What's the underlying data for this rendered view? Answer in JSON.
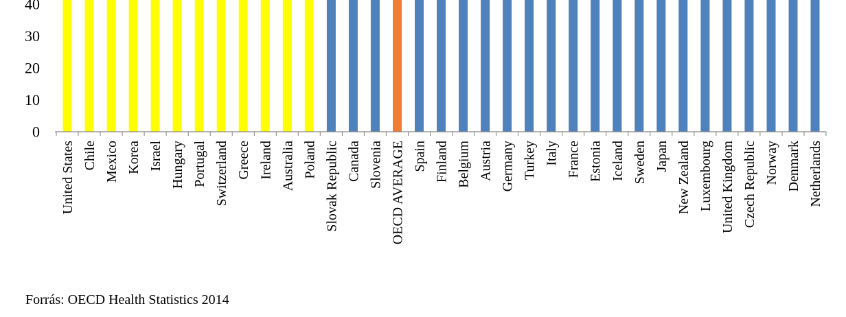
{
  "chart_data": {
    "type": "bar",
    "categories": [
      "United States",
      "Chile",
      "Mexico",
      "Korea",
      "Israel",
      "Hungary",
      "Portugal",
      "Switzerland",
      "Greece",
      "Ireland",
      "Australia",
      "Poland",
      "Slovak Republic",
      "Canada",
      "Slovenia",
      "OECD AVERAGE",
      "Spain",
      "Finland",
      "Belgium",
      "Austria",
      "Germany",
      "Turkey",
      "Italy",
      "France",
      "Estonia",
      "Iceland",
      "Sweden",
      "Japan",
      "New Zealand",
      "Luxembourg",
      "United Kingdom",
      "Czech Republic",
      "Norway",
      "Denmark",
      "Netherlands"
    ],
    "values": [
      45,
      45,
      45,
      45,
      45,
      45,
      45,
      45,
      45,
      45,
      45,
      45,
      45,
      45,
      45,
      45,
      45,
      45,
      45,
      45,
      45,
      45,
      45,
      45,
      45,
      45,
      45,
      45,
      45,
      45,
      45,
      45,
      45,
      45,
      45
    ],
    "bar_groups": [
      "yellow",
      "yellow",
      "yellow",
      "yellow",
      "yellow",
      "yellow",
      "yellow",
      "yellow",
      "yellow",
      "yellow",
      "yellow",
      "yellow",
      "blue",
      "blue",
      "blue",
      "orange",
      "blue",
      "blue",
      "blue",
      "blue",
      "blue",
      "blue",
      "blue",
      "blue",
      "blue",
      "blue",
      "blue",
      "blue",
      "blue",
      "blue",
      "blue",
      "blue",
      "blue",
      "blue",
      "blue"
    ],
    "colors": {
      "yellow": "#ffff00",
      "blue": "#4f81bd",
      "orange": "#f07d32"
    },
    "yticks": [
      0,
      10,
      20,
      30,
      40
    ],
    "ylim": [
      0,
      40
    ],
    "grid": false,
    "title": "",
    "xlabel": "",
    "ylabel": ""
  },
  "source_note": "Forrás: OECD Health Statistics 2014"
}
